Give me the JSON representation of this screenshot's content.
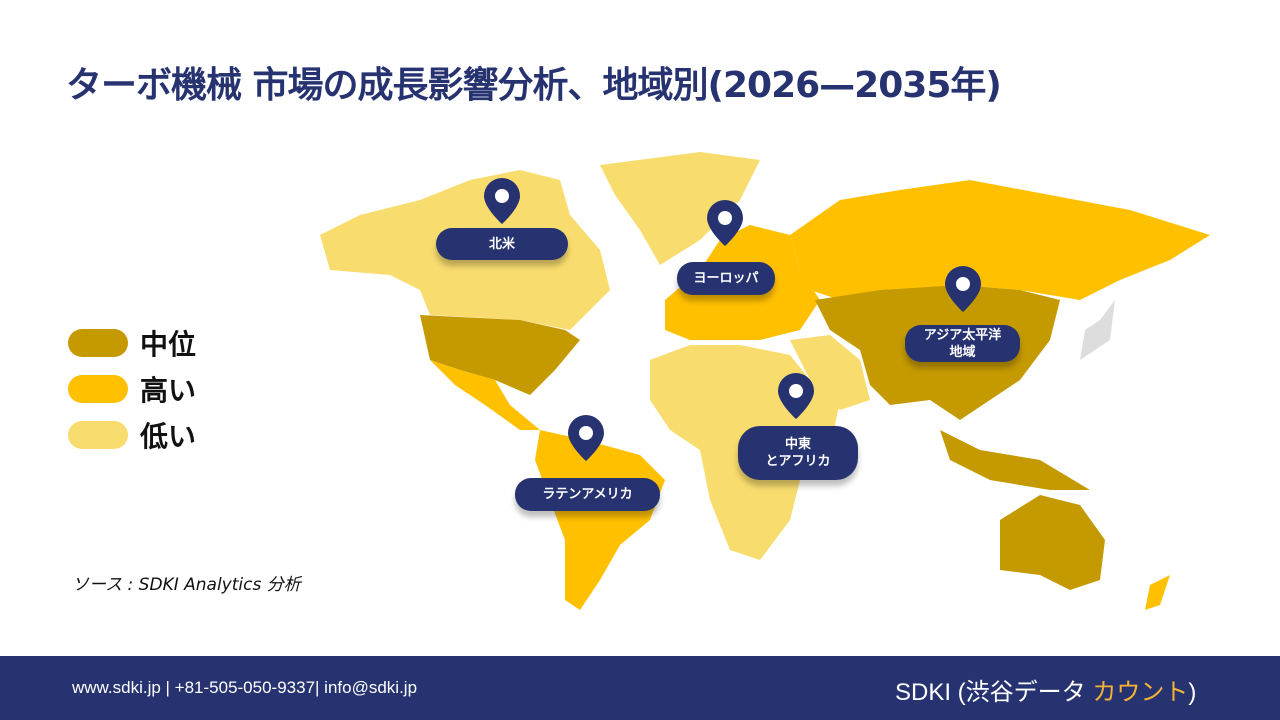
{
  "title": "ターボ機械 市場の成長影響分析、地域別(2026—2035年)",
  "legend": [
    {
      "label": "中位",
      "color": "#C49A00"
    },
    {
      "label": "高い",
      "color": "#FFC000"
    },
    {
      "label": "低い",
      "color": "#F8DC6E"
    }
  ],
  "regions": {
    "north_america": {
      "label": "北米",
      "level": "低い / 中位"
    },
    "europe": {
      "label": "ヨーロッパ",
      "level": "高い"
    },
    "asia_pacific": {
      "label": "アジア太平洋\n地域",
      "line1": "アジア太平洋",
      "line2": "地域",
      "level": "中位"
    },
    "mea": {
      "line1": "中東",
      "line2": "とアフリカ",
      "level": "低い"
    },
    "latam": {
      "label": "ラテンアメリカ",
      "level": "高い"
    }
  },
  "source": "ソース : SDKI Analytics 分析",
  "footer": {
    "contact": "www.sdki.jp | +81-505-050-9337| info@sdki.jp",
    "brand_prefix": "SDKI (渋谷データ ",
    "brand_accent": "カウント",
    "brand_suffix": ")"
  },
  "colors": {
    "navy": "#263370",
    "mid": "#C49A00",
    "high": "#FFC000",
    "low": "#F8DC6E"
  }
}
